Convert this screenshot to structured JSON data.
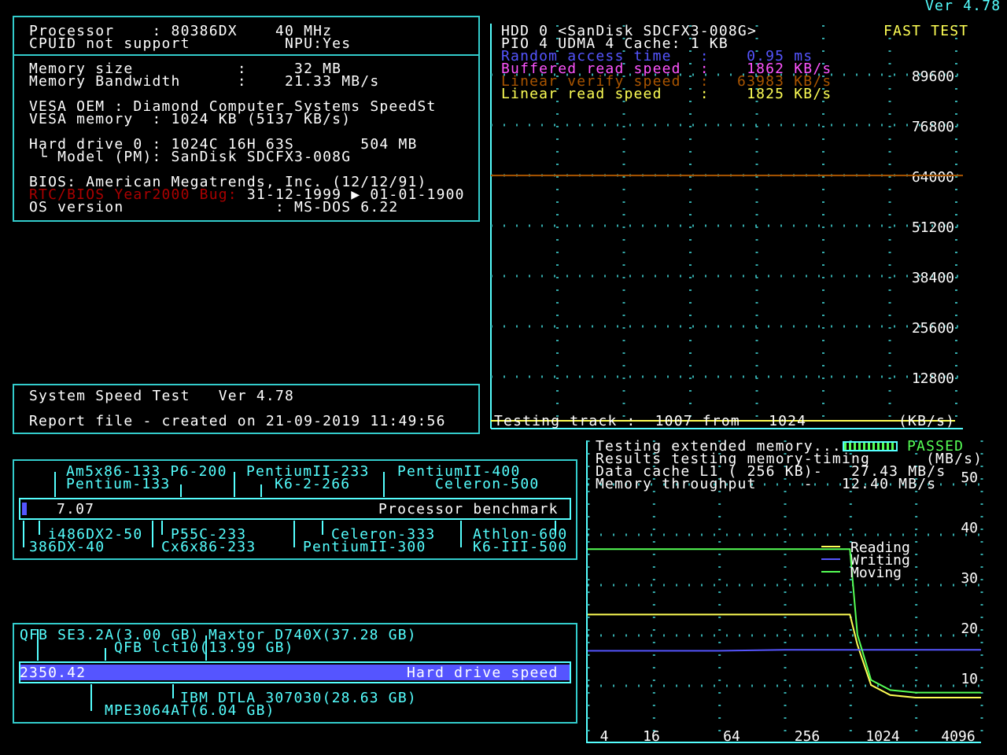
{
  "version": "Ver 4.78",
  "sysinfo": {
    "processor": "Processor    : 80386DX    40 MHz",
    "cpuid": "CPUID not support          NPU:Yes",
    "mem_size": "Memory size           :     32 MB",
    "mem_bw": "Memory Bandwidth      :    21.33 MB/s",
    "vesa_oem": "VESA OEM : Diamond Computer Systems SpeedSt",
    "vesa_mem": "VESA memory  : 1024 KB (5137 KB/s)",
    "hd": "Hard drive 0 : 1024C 16H 63S       504 MB",
    "hd_model": " └ Model (PM): SanDisk SDCFX3-008G",
    "bios": "BIOS: American Megatrends, Inc. (12/12/91)",
    "y2k_label": "RTC/BIOS Year2000 Bug:",
    "y2k_value": " 31-12-1999 ▶ 01-01-1900",
    "os": "OS version                : MS-DOS 6.22"
  },
  "report": {
    "title": "System Speed Test   Ver 4.78",
    "line": "Report file - created on 21-09-2019 11:49:56"
  },
  "hdd": {
    "title": "HDD 0 <SanDisk SDCFX3-008G>",
    "mode_label": "FAST TEST",
    "line2": "PIO 4 UDMA 4 Cache: 1 KB",
    "metrics": [
      {
        "label": "Random access time   :",
        "value": "  0.95 ms",
        "color": "#5555ff"
      },
      {
        "label": "Buffered read speed  :",
        "value": "  1862 KB/s",
        "color": "#ff55ff"
      },
      {
        "label": "Linear verify speed  :",
        "value": " 63983 KB/s",
        "color": "#aa5500"
      },
      {
        "label": "Linear read speed    :",
        "value": "  1825 KB/s",
        "color": "#ffff55"
      }
    ],
    "status": "Testing track :  1007 from   1024",
    "unit": "(KB/s)"
  },
  "memory": {
    "l1": "Testing extended memory...",
    "passed": "PASSED",
    "l2": "Results testing memory-timing",
    "unit": "(MB/s)",
    "l3": "Data cache L1 ( 256 KB)-   27.43 MB/s",
    "l4": "Memory throughput     -   12.40 MB/s"
  },
  "cpu_bench": {
    "value": "7.07",
    "label": "Processor benchmark",
    "top": [
      "Am5x86-133 P6-200",
      "Pentium-133",
      "PentiumII-233",
      "K6-2-266",
      "PentiumII-400",
      "Celeron-500"
    ],
    "bottom": [
      "i486DX2-50",
      "386DX-40",
      "P55C-233",
      "Cx6x86-233",
      "Celeron-333",
      "PentiumII-300",
      "Athlon-600",
      "K6-III-500"
    ]
  },
  "hd_bench": {
    "value": "2350.42",
    "label": "Hard drive speed",
    "top": [
      "QFB SE3.2A(3.00 GB)",
      "Maxtor D740X(37.28 GB)",
      "QFB lct10(13.99 GB)"
    ],
    "bottom": [
      "IBM DTLA 307030(28.63 GB)",
      "MPE3064AT(6.04 GB)"
    ]
  },
  "chart_data": [
    {
      "type": "line",
      "title": "HDD 0 <SanDisk SDCFX3-008G>",
      "ylabel": "(KB/s)",
      "ylim": [
        0,
        89600
      ],
      "yticks": [
        89600,
        76800,
        64000,
        51200,
        38400,
        25600,
        12800
      ],
      "series": [
        {
          "name": "Linear verify speed",
          "color": "#aa5500",
          "x": [
            0,
            1024
          ],
          "y": [
            63983,
            63983
          ]
        },
        {
          "name": "Linear read speed",
          "color": "#ffff55",
          "x": [
            0,
            1007
          ],
          "y": [
            1825,
            1825
          ]
        }
      ],
      "grid": true
    },
    {
      "type": "line",
      "ylabel": "(MB/s)",
      "ylim": [
        0,
        50
      ],
      "xscale": "log",
      "xticks": [
        4,
        16,
        64,
        256,
        1024,
        4096
      ],
      "yticks": [
        50,
        40,
        30,
        20,
        10
      ],
      "series": [
        {
          "name": "Reading",
          "color": "#ffff55",
          "x": [
            1,
            4,
            16,
            64,
            256,
            300,
            400,
            600,
            1024,
            4096
          ],
          "y": [
            24,
            24,
            24,
            24,
            24,
            18,
            10,
            8,
            7.5,
            7.5
          ]
        },
        {
          "name": "Writing",
          "color": "#5555ff",
          "x": [
            1,
            4,
            16,
            64,
            256,
            400,
            1024,
            4096
          ],
          "y": [
            16.8,
            16.8,
            16.8,
            17,
            17,
            17,
            17,
            17
          ]
        },
        {
          "name": "Moving",
          "color": "#55ff55",
          "x": [
            1,
            4,
            16,
            64,
            256,
            300,
            400,
            600,
            1024,
            4096
          ],
          "y": [
            37,
            37,
            37,
            37,
            37,
            20,
            11,
            9,
            8.5,
            8.5
          ]
        }
      ],
      "grid": true,
      "legend": "right"
    }
  ]
}
